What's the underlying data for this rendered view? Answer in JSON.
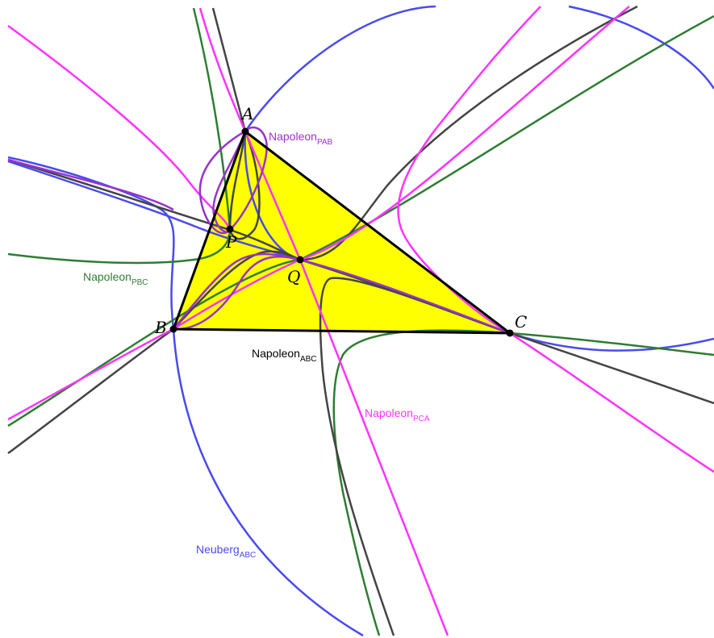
{
  "points": {
    "A": {
      "label": "A"
    },
    "B": {
      "label": "B"
    },
    "C": {
      "label": "C"
    },
    "P": {
      "label": "P"
    },
    "Q": {
      "label": "Q"
    }
  },
  "curves": {
    "napoleon_pab": {
      "base": "Napoleon",
      "sub": "PAB"
    },
    "napoleon_pbc": {
      "base": "Napoleon",
      "sub": "PBC"
    },
    "napoleon_abc": {
      "base": "Napoleon",
      "sub": "ABC"
    },
    "napoleon_pca": {
      "base": "Napoleon",
      "sub": "PCA"
    },
    "neuberg_abc": {
      "base": "Neuberg",
      "sub": "ABC"
    }
  },
  "colors": {
    "triangle_fill": "#ffff00",
    "triangle_stroke": "#000000",
    "napoleon_pab": "#9933cc",
    "napoleon_pbc": "#2e7d32",
    "napoleon_abc": "#444444",
    "napoleon_pca": "#ff33ff",
    "neuberg_abc": "#4a4aee"
  }
}
